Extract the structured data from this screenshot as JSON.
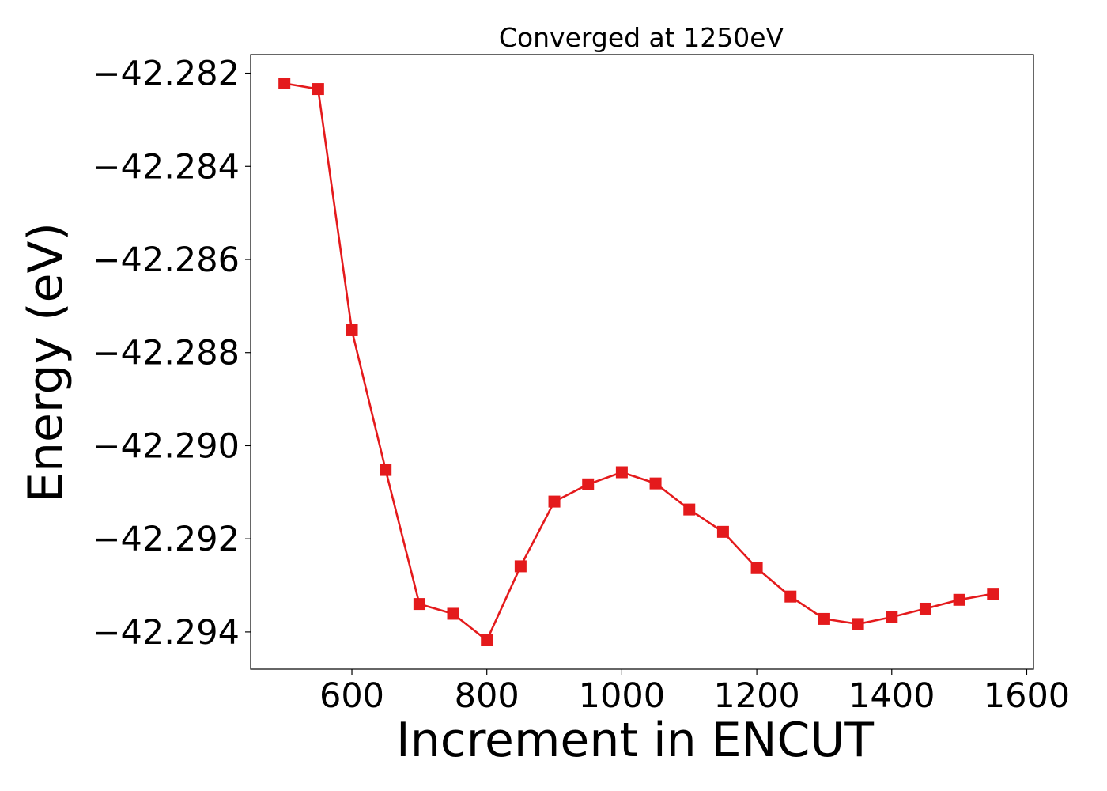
{
  "chart_data": {
    "type": "line",
    "title": "Converged at 1250eV",
    "xlabel": "Increment in ENCUT",
    "ylabel": "Energy (eV)",
    "xlim": [
      450,
      1610
    ],
    "ylim": [
      -42.2948,
      -42.2816
    ],
    "xticks": [
      600,
      800,
      1000,
      1200,
      1400,
      1600
    ],
    "xtick_labels": [
      "600",
      "800",
      "1000",
      "1200",
      "1400",
      "1600"
    ],
    "yticks": [
      -42.282,
      -42.284,
      -42.286,
      -42.288,
      -42.29,
      -42.292,
      -42.294
    ],
    "ytick_labels": [
      "−42.282",
      "−42.284",
      "−42.286",
      "−42.288",
      "−42.290",
      "−42.292",
      "−42.294"
    ],
    "grid": false,
    "legend": "none",
    "series": [
      {
        "color": "#e41a1c",
        "marker": "square",
        "x": [
          500,
          550,
          600,
          650,
          700,
          750,
          800,
          850,
          900,
          950,
          1000,
          1050,
          1100,
          1150,
          1200,
          1250,
          1300,
          1350,
          1400,
          1450,
          1500,
          1550
        ],
        "y": [
          -42.28222,
          -42.28234,
          -42.28752,
          -42.29052,
          -42.2934,
          -42.29361,
          -42.29418,
          -42.29259,
          -42.2912,
          -42.29083,
          -42.29057,
          -42.29081,
          -42.29137,
          -42.29185,
          -42.29263,
          -42.29324,
          -42.29372,
          -42.29383,
          -42.29368,
          -42.2935,
          -42.29331,
          -42.29318
        ]
      }
    ]
  }
}
